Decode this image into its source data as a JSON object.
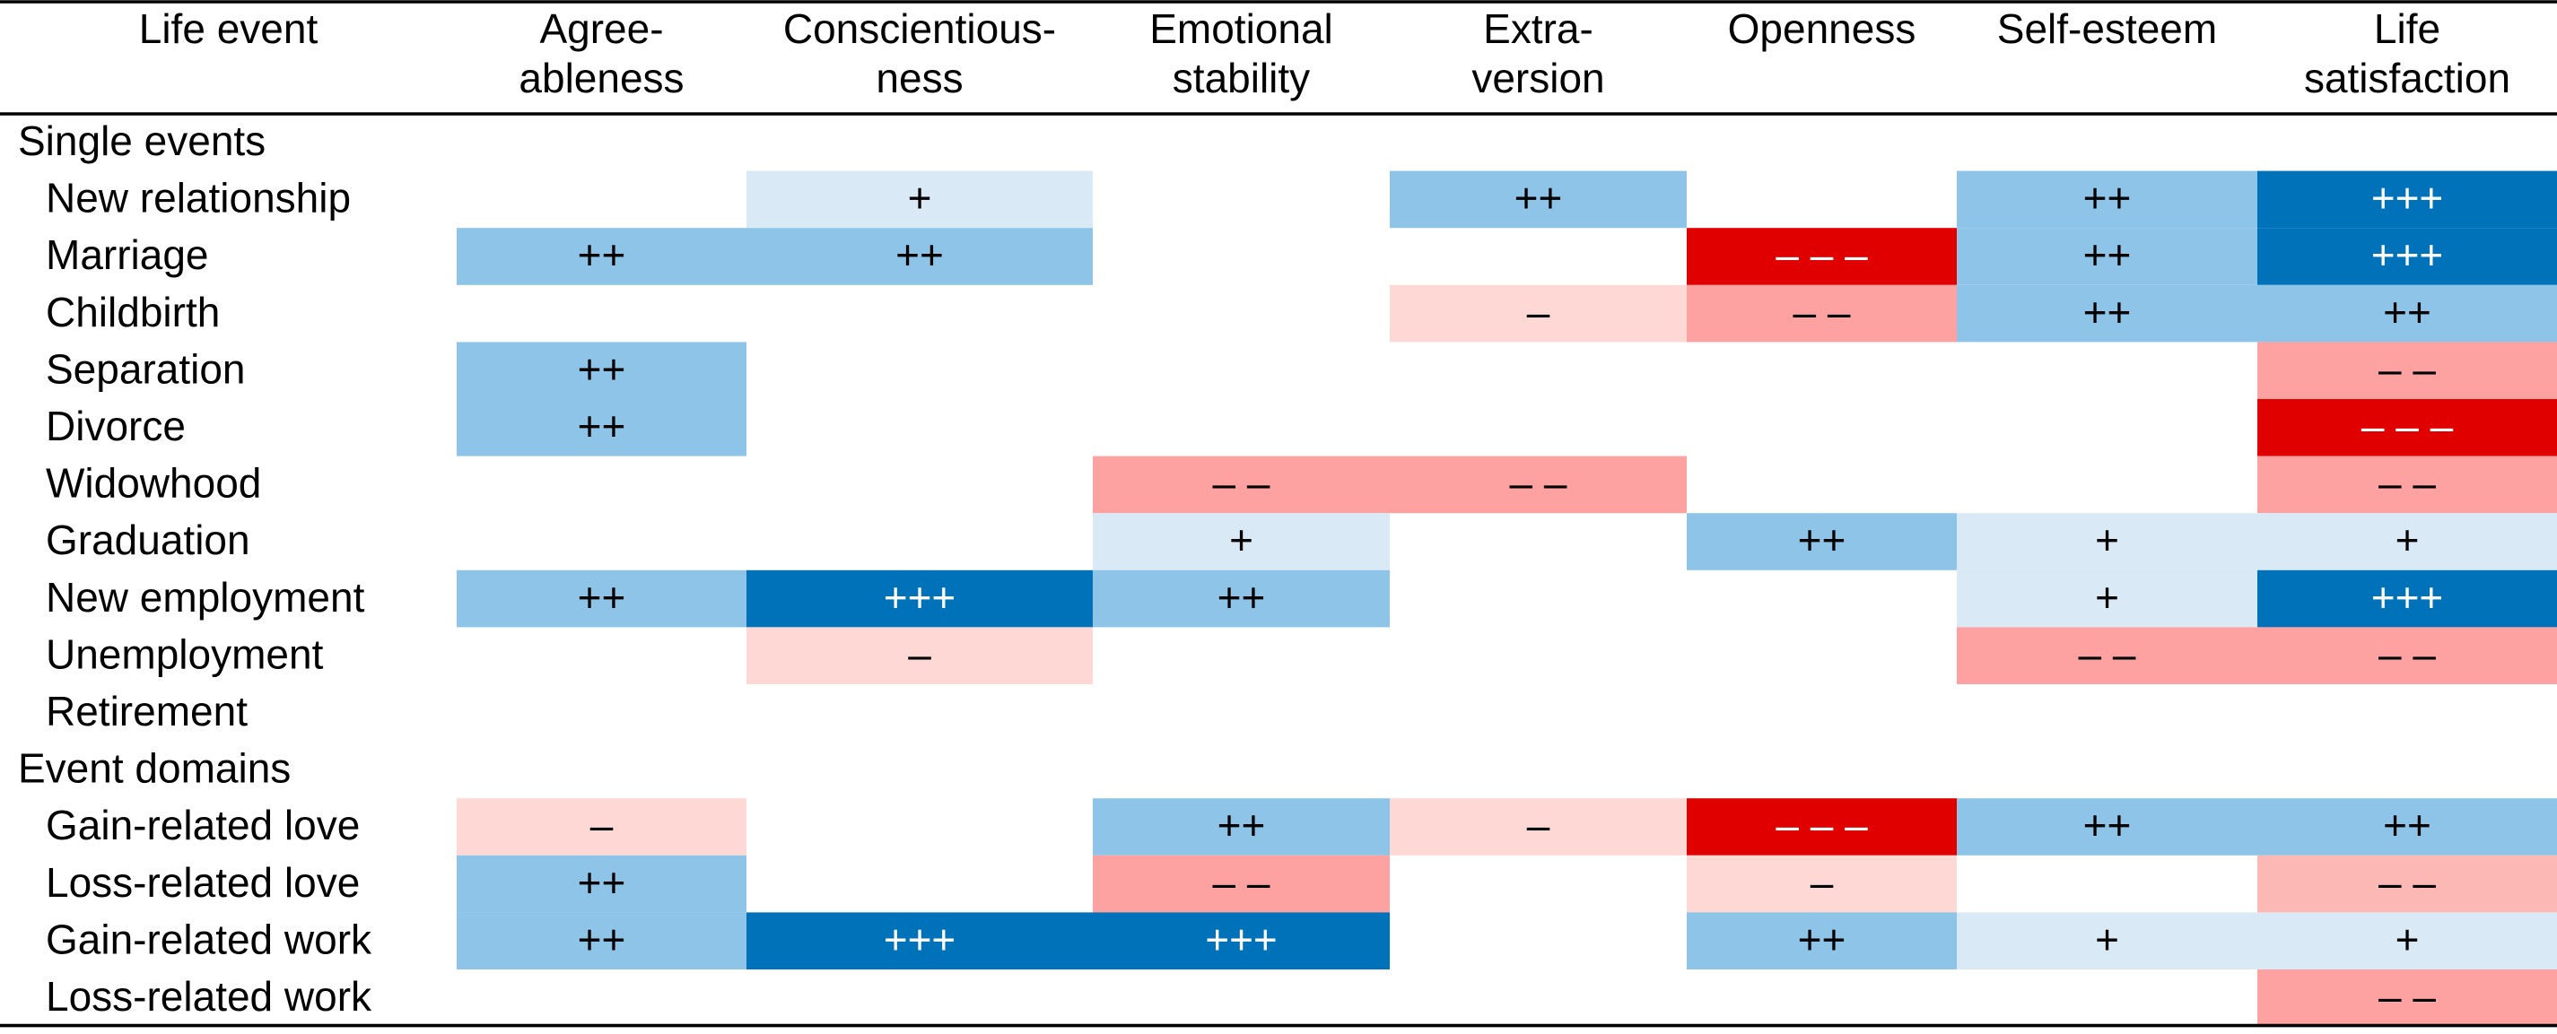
{
  "table": {
    "columns": [
      [
        "Life event"
      ],
      [
        "Agree-",
        "ableness"
      ],
      [
        "Conscientious-",
        "ness"
      ],
      [
        "Emotional",
        "stability"
      ],
      [
        "Extra-",
        "version"
      ],
      [
        "Openness"
      ],
      [
        "Self-esteem"
      ],
      [
        "Life",
        "satisfaction"
      ]
    ],
    "sections": [
      {
        "title": "Single events",
        "rows": [
          {
            "label": "New relationship",
            "cells": [
              null,
              {
                "text": "+",
                "color": "#dae9f6"
              },
              null,
              {
                "text": "++",
                "color": "#8ec4e8"
              },
              null,
              {
                "text": "++",
                "color": "#8ec4e8"
              },
              {
                "text": "+++",
                "color": "#0072b9"
              }
            ]
          },
          {
            "label": "Marriage",
            "cells": [
              {
                "text": "++",
                "color": "#8ec4e8"
              },
              {
                "text": "++",
                "color": "#8ec4e8"
              },
              null,
              null,
              {
                "text": "– – –",
                "color": "#e00000"
              },
              {
                "text": "++",
                "color": "#8ec4e8"
              },
              {
                "text": "+++",
                "color": "#0072b9"
              }
            ]
          },
          {
            "label": "Childbirth",
            "cells": [
              null,
              null,
              null,
              {
                "text": "–",
                "color": "#fdd8d4"
              },
              {
                "text": "– –",
                "color": "#fda1a1"
              },
              {
                "text": "++",
                "color": "#8ec4e8"
              },
              {
                "text": "++",
                "color": "#8ec4e8"
              }
            ]
          },
          {
            "label": "Separation",
            "cells": [
              {
                "text": "++",
                "color": "#8ec4e8"
              },
              null,
              null,
              null,
              null,
              null,
              {
                "text": "– –",
                "color": "#fda1a1"
              }
            ]
          },
          {
            "label": "Divorce",
            "cells": [
              {
                "text": "++",
                "color": "#8ec4e8"
              },
              null,
              null,
              null,
              null,
              null,
              {
                "text": "– – –",
                "color": "#e00000"
              }
            ]
          },
          {
            "label": "Widowhood",
            "cells": [
              null,
              null,
              {
                "text": "– –",
                "color": "#fda1a1"
              },
              {
                "text": "– –",
                "color": "#fda1a1"
              },
              null,
              null,
              {
                "text": "– –",
                "color": "#fda1a1"
              }
            ]
          },
          {
            "label": "Graduation",
            "cells": [
              null,
              null,
              {
                "text": "+",
                "color": "#dae9f6"
              },
              null,
              {
                "text": "++",
                "color": "#8ec4e8"
              },
              {
                "text": "+",
                "color": "#dae9f6"
              },
              {
                "text": "+",
                "color": "#dae9f6"
              }
            ]
          },
          {
            "label": "New employment",
            "cells": [
              {
                "text": "++",
                "color": "#8ec4e8"
              },
              {
                "text": "+++",
                "color": "#0072b9"
              },
              {
                "text": "++",
                "color": "#8ec4e8"
              },
              null,
              null,
              {
                "text": "+",
                "color": "#dae9f6"
              },
              {
                "text": "+++",
                "color": "#0072b9"
              }
            ]
          },
          {
            "label": "Unemployment",
            "cells": [
              null,
              {
                "text": "–",
                "color": "#fdd8d4"
              },
              null,
              null,
              null,
              {
                "text": "– –",
                "color": "#fda1a1"
              },
              {
                "text": "– –",
                "color": "#fda1a1"
              }
            ]
          },
          {
            "label": "Retirement",
            "cells": [
              null,
              null,
              null,
              null,
              null,
              null,
              null
            ]
          }
        ]
      },
      {
        "title": "Event domains",
        "rows": [
          {
            "label": "Gain-related love",
            "cells": [
              {
                "text": "–",
                "color": "#fdd8d4"
              },
              null,
              {
                "text": "++",
                "color": "#8ec4e8"
              },
              {
                "text": "–",
                "color": "#fdd8d4"
              },
              {
                "text": "– – –",
                "color": "#e00000"
              },
              {
                "text": "++",
                "color": "#8ec4e8"
              },
              {
                "text": "++",
                "color": "#8ec4e8"
              }
            ]
          },
          {
            "label": "Loss-related love",
            "cells": [
              {
                "text": "++",
                "color": "#8ec4e8"
              },
              null,
              {
                "text": "– –",
                "color": "#fda1a1"
              },
              null,
              {
                "text": "–",
                "color": "#fdd8d4"
              },
              null,
              {
                "text": "– –",
                "color": "#fcb8b4"
              }
            ]
          },
          {
            "label": "Gain-related work",
            "cells": [
              {
                "text": "++",
                "color": "#8ec4e8"
              },
              {
                "text": "+++",
                "color": "#0072b9"
              },
              {
                "text": "+++",
                "color": "#0072b9"
              },
              null,
              {
                "text": "++",
                "color": "#8ec4e8"
              },
              {
                "text": "+",
                "color": "#dae9f6"
              },
              {
                "text": "+",
                "color": "#dae9f6"
              }
            ]
          },
          {
            "label": "Loss-related work",
            "cells": [
              null,
              null,
              null,
              null,
              null,
              null,
              {
                "text": "– –",
                "color": "#fda1a1"
              }
            ]
          }
        ]
      }
    ]
  }
}
